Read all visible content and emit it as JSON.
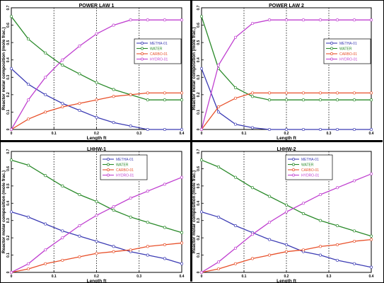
{
  "colors": {
    "METHA-01": "#3c3cb4",
    "WATER": "#2a8a2a",
    "CARBO-01": "#e8502a",
    "HYDRO-01": "#c040d0"
  },
  "chart_data": [
    {
      "type": "line",
      "title": "POWER LAW 1",
      "xlabel": "Length ft",
      "ylabel": "Reactor molar composition (mole frac.)",
      "xlim": [
        0,
        0.4
      ],
      "ylim": [
        0,
        0.7
      ],
      "xticks": [
        "0",
        "0.1",
        "0.2",
        "0.3",
        "0.4"
      ],
      "yticks": [
        "0",
        "0.1",
        "0.2",
        "0.3",
        "0.4",
        "0.5",
        "0.6",
        "0.7"
      ],
      "grid": "vertical-dotted",
      "legend": "right",
      "x": [
        0,
        0.04,
        0.08,
        0.12,
        0.16,
        0.2,
        0.24,
        0.28,
        0.32,
        0.36,
        0.4
      ],
      "series": [
        {
          "name": "METHA-01",
          "values": [
            0.35,
            0.26,
            0.2,
            0.15,
            0.11,
            0.07,
            0.04,
            0.02,
            0.0,
            0.0,
            0.0
          ]
        },
        {
          "name": "WATER",
          "values": [
            0.65,
            0.52,
            0.44,
            0.37,
            0.32,
            0.27,
            0.23,
            0.2,
            0.17,
            0.17,
            0.17
          ]
        },
        {
          "name": "CARBO-01",
          "values": [
            0.0,
            0.06,
            0.1,
            0.13,
            0.15,
            0.17,
            0.19,
            0.2,
            0.21,
            0.21,
            0.21
          ]
        },
        {
          "name": "HYDRO-01",
          "values": [
            0.0,
            0.17,
            0.3,
            0.4,
            0.48,
            0.55,
            0.6,
            0.63,
            0.63,
            0.63,
            0.63
          ]
        }
      ]
    },
    {
      "type": "line",
      "title": "POWER LAW 2",
      "xlabel": "Length ft",
      "ylabel": "Reactor molar composition (mole frac.)",
      "xlim": [
        0,
        0.4
      ],
      "ylim": [
        0,
        0.7
      ],
      "xticks": [
        "0",
        "0.1",
        "0.2",
        "0.3",
        "0.4"
      ],
      "yticks": [
        "0",
        "0.1",
        "0.2",
        "0.3",
        "0.4",
        "0.5",
        "0.6",
        "0.7"
      ],
      "grid": "vertical-dotted",
      "legend": "right",
      "x": [
        0,
        0.04,
        0.08,
        0.12,
        0.16,
        0.2,
        0.24,
        0.28,
        0.32,
        0.36,
        0.4
      ],
      "series": [
        {
          "name": "METHA-01",
          "values": [
            0.35,
            0.1,
            0.03,
            0.01,
            0.0,
            0.0,
            0.0,
            0.0,
            0.0,
            0.0,
            0.0
          ]
        },
        {
          "name": "WATER",
          "values": [
            0.65,
            0.35,
            0.24,
            0.19,
            0.17,
            0.17,
            0.17,
            0.17,
            0.17,
            0.17,
            0.17
          ]
        },
        {
          "name": "CARBO-01",
          "values": [
            0.0,
            0.13,
            0.18,
            0.21,
            0.21,
            0.21,
            0.21,
            0.21,
            0.21,
            0.21,
            0.21
          ]
        },
        {
          "name": "HYDRO-01",
          "values": [
            0.0,
            0.37,
            0.53,
            0.61,
            0.63,
            0.63,
            0.63,
            0.63,
            0.63,
            0.63,
            0.63
          ]
        }
      ]
    },
    {
      "type": "line",
      "title": "LHHW-1",
      "xlabel": "Length ft",
      "ylabel": "Reactor molar composition (mole frac.)",
      "xlim": [
        0,
        0.4
      ],
      "ylim": [
        0,
        0.7
      ],
      "xticks": [
        "0",
        "0.1",
        "0.2",
        "0.3",
        "0.4"
      ],
      "yticks": [
        "0",
        "0.1",
        "0.2",
        "0.3",
        "0.4",
        "0.5",
        "0.6",
        "0.7"
      ],
      "grid": "vertical-dotted",
      "legend": "top-right",
      "x": [
        0,
        0.04,
        0.08,
        0.12,
        0.16,
        0.2,
        0.24,
        0.28,
        0.32,
        0.36,
        0.4
      ],
      "series": [
        {
          "name": "METHA-01",
          "values": [
            0.35,
            0.32,
            0.28,
            0.24,
            0.21,
            0.18,
            0.15,
            0.12,
            0.1,
            0.08,
            0.05
          ]
        },
        {
          "name": "WATER",
          "values": [
            0.65,
            0.62,
            0.56,
            0.5,
            0.45,
            0.41,
            0.36,
            0.32,
            0.29,
            0.26,
            0.23
          ]
        },
        {
          "name": "CARBO-01",
          "values": [
            0.0,
            0.02,
            0.05,
            0.07,
            0.09,
            0.11,
            0.12,
            0.13,
            0.15,
            0.16,
            0.17
          ]
        },
        {
          "name": "HYDRO-01",
          "values": [
            0.0,
            0.05,
            0.13,
            0.2,
            0.27,
            0.33,
            0.38,
            0.43,
            0.47,
            0.51,
            0.55
          ]
        }
      ]
    },
    {
      "type": "line",
      "title": "LHHW-2",
      "xlabel": "Length ft",
      "ylabel": "Reactor molar composition (mole frac.)",
      "xlim": [
        0,
        0.4
      ],
      "ylim": [
        0,
        0.7
      ],
      "xticks": [
        "0",
        "0.1",
        "0.2",
        "0.3",
        "0.4"
      ],
      "yticks": [
        "0",
        "0.1",
        "0.2",
        "0.3",
        "0.4",
        "0.5",
        "0.6",
        "0.7"
      ],
      "grid": "vertical-dotted",
      "legend": "top-right",
      "x": [
        0,
        0.04,
        0.08,
        0.12,
        0.16,
        0.2,
        0.24,
        0.28,
        0.32,
        0.36,
        0.4
      ],
      "series": [
        {
          "name": "METHA-01",
          "values": [
            0.35,
            0.32,
            0.27,
            0.23,
            0.19,
            0.16,
            0.12,
            0.1,
            0.07,
            0.05,
            0.03
          ]
        },
        {
          "name": "WATER",
          "values": [
            0.65,
            0.61,
            0.55,
            0.49,
            0.44,
            0.39,
            0.34,
            0.3,
            0.27,
            0.24,
            0.21
          ]
        },
        {
          "name": "CARBO-01",
          "values": [
            0.0,
            0.02,
            0.05,
            0.08,
            0.1,
            0.12,
            0.13,
            0.15,
            0.16,
            0.18,
            0.19
          ]
        },
        {
          "name": "HYDRO-01",
          "values": [
            0.0,
            0.06,
            0.14,
            0.22,
            0.29,
            0.35,
            0.4,
            0.45,
            0.49,
            0.53,
            0.57
          ]
        }
      ]
    }
  ]
}
